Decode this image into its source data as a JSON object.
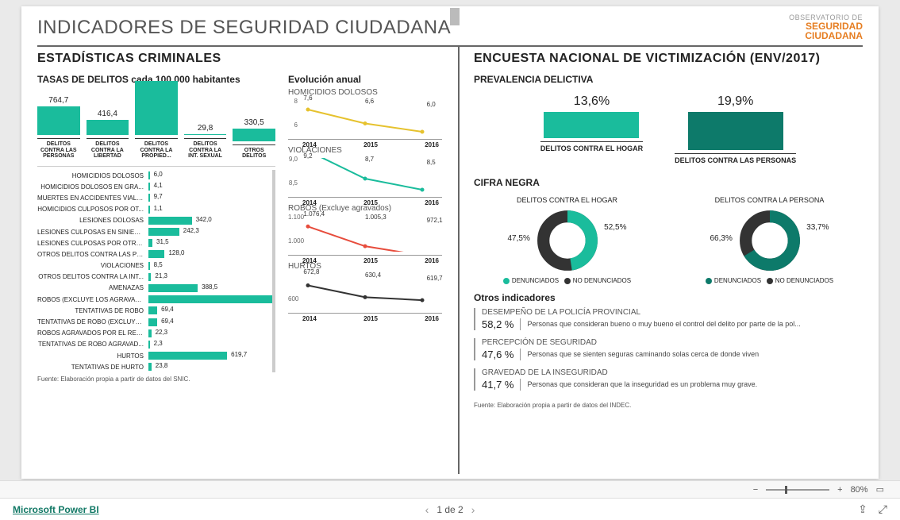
{
  "header": {
    "title": "INDICADORES DE SEGURIDAD CIUDADANA",
    "logo_top": "OBSERVATORIO DE",
    "logo_mid": "SEGURIDAD",
    "logo_bot": "CIUDADANA"
  },
  "colors": {
    "teal": "#1abc9c",
    "teal_dark": "#0d7a6a",
    "grey": "#555555",
    "yellow": "#e6c22e",
    "red": "#e74c3c",
    "dark": "#333333",
    "light_teal": "#5fd4b8"
  },
  "left": {
    "section_title": "ESTADÍSTICAS CRIMINALES",
    "tasas_title": "TASAS DE DELITOS cada 100.000 habitantes",
    "bar5": {
      "max": 1500,
      "categories": [
        "DELITOS CONTRA LAS PERSONAS",
        "DELITOS CONTRA LA LIBERTAD",
        "DELITOS CONTRA LA PROPIED...",
        "DELITOS CONTRA LA INT. SEXUAL",
        "OTROS DELITOS"
      ],
      "values": [
        764.7,
        416.4,
        1461.0,
        29.8,
        330.5
      ],
      "value_labels": [
        "764,7",
        "416,4",
        "",
        "29,8",
        "330,5"
      ]
    },
    "hbars": {
      "max": 1000,
      "items": [
        {
          "label": "HOMICIDIOS DOLOSOS",
          "value": 6.0,
          "vl": "6,0"
        },
        {
          "label": "HOMICIDIOS DOLOSOS EN GRA...",
          "value": 4.1,
          "vl": "4,1"
        },
        {
          "label": "MUERTES EN ACCIDENTES VIALES",
          "value": 9.7,
          "vl": "9,7"
        },
        {
          "label": "HOMICIDIOS CULPOSOS POR OT...",
          "value": 1.1,
          "vl": "1,1"
        },
        {
          "label": "LESIONES DOLOSAS",
          "value": 342.0,
          "vl": "342,0"
        },
        {
          "label": "LESIONES CULPOSAS EN SINIEST...",
          "value": 242.3,
          "vl": "242,3"
        },
        {
          "label": "LESIONES CULPOSAS POR OTRO...",
          "value": 31.5,
          "vl": "31,5"
        },
        {
          "label": "OTROS DELITOS CONTRA LAS PE...",
          "value": 128.0,
          "vl": "128,0"
        },
        {
          "label": "VIOLACIONES",
          "value": 8.5,
          "vl": "8,5"
        },
        {
          "label": "OTROS DELITOS CONTRA LA INT...",
          "value": 21.3,
          "vl": "21,3"
        },
        {
          "label": "AMENAZAS",
          "value": 388.5,
          "vl": "388,5"
        },
        {
          "label": "ROBOS (EXCLUYE LOS AGRAVAD...",
          "value": 972.1,
          "vl": "972,1"
        },
        {
          "label": "TENTATIVAS DE ROBO",
          "value": 69.4,
          "vl": "69,4"
        },
        {
          "label": "TENTATIVAS DE ROBO (EXCLUYE ...",
          "value": 69.4,
          "vl": "69,4"
        },
        {
          "label": "ROBOS AGRAVADOS POR EL RES...",
          "value": 22.3,
          "vl": "22,3"
        },
        {
          "label": "TENTATIVAS DE ROBO AGRAVAD...",
          "value": 2.3,
          "vl": "2,3"
        },
        {
          "label": "HURTOS",
          "value": 619.7,
          "vl": "619,7"
        },
        {
          "label": "TENTATIVAS DE HURTO",
          "value": 23.8,
          "vl": "23,8"
        }
      ]
    },
    "evolucion_title": "Evolución anual",
    "minicharts": [
      {
        "title": "HOMICIDIOS DOLOSOS",
        "years": [
          "2014",
          "2015",
          "2016"
        ],
        "vals": [
          7.6,
          6.6,
          6.0
        ],
        "val_labels": [
          "7,6",
          "6,6",
          "6,0"
        ],
        "ymin": 6,
        "ymax": 8,
        "yticks": [
          "8",
          "6"
        ],
        "color": "#e6c22e"
      },
      {
        "title": "VIOLACIONES",
        "years": [
          "2014",
          "2015",
          "2016"
        ],
        "vals": [
          9.2,
          8.7,
          8.5
        ],
        "val_labels": [
          "9,2",
          "8,7",
          "8,5"
        ],
        "ymin": 8.5,
        "ymax": 9.0,
        "yticks": [
          "9,0",
          "8,5"
        ],
        "color": "#1abc9c"
      },
      {
        "title": "ROBOS (Excluye agravados)",
        "years": [
          "2014",
          "2015",
          "2016"
        ],
        "vals": [
          1076.4,
          1005.3,
          972.1
        ],
        "val_labels": [
          "1.076,4",
          "1.005,3",
          "972,1"
        ],
        "ymin": 1000,
        "ymax": 1100,
        "yticks": [
          "1.100",
          "1.000"
        ],
        "color": "#e74c3c"
      },
      {
        "title": "HURTOS",
        "years": [
          "2014",
          "2015",
          "2016"
        ],
        "vals": [
          672.8,
          630.4,
          619.7
        ],
        "val_labels": [
          "672,8",
          "630,4",
          "619,7"
        ],
        "ymin": 600,
        "ymax": 700,
        "yticks": [
          "",
          "600"
        ],
        "color": "#333333"
      }
    ],
    "source": "Fuente: Elaboración propia a partir de datos del SNIC."
  },
  "right": {
    "section_title": "ENCUESTA NACIONAL DE VICTIMIZACIÓN (ENV/2017)",
    "prevalencia_title": "PREVALENCIA DELICTIVA",
    "prevalencia": [
      {
        "pct": "13,6%",
        "value": 13.6,
        "max": 25,
        "label": "DELITOS CONTRA EL HOGAR",
        "dark": false
      },
      {
        "pct": "19,9%",
        "value": 19.9,
        "max": 25,
        "label": "DELITOS CONTRA LAS PERSONAS",
        "dark": true
      }
    ],
    "cifra_title": "CIFRA NEGRA",
    "donuts": [
      {
        "title": "DELITOS CONTRA EL HOGAR",
        "a": 47.5,
        "b": 52.5,
        "a_label": "47,5%",
        "b_label": "52,5%",
        "color_a": "#1abc9c",
        "color_b": "#333333",
        "legend_a": "DENUNCIADOS",
        "legend_b": "NO DENUNCIADOS"
      },
      {
        "title": "DELITOS CONTRA LA PERSONA",
        "a": 66.3,
        "b": 33.7,
        "a_label": "66,3%",
        "b_label": "33,7%",
        "color_a": "#0d7a6a",
        "color_b": "#333333",
        "legend_a": "DENUNCIADOS",
        "legend_b": "NO DENUNCIADOS"
      }
    ],
    "otros_title": "Otros indicadores",
    "indicators": [
      {
        "title": "DESEMPEÑO DE LA POLICÍA PROVINCIAL",
        "pct": "58,2 %",
        "desc": "Personas que consideran bueno o muy bueno el control del delito por parte de la pol..."
      },
      {
        "title": "PERCEPCIÓN DE SEGURIDAD",
        "pct": "47,6 %",
        "desc": "Personas que se sienten seguras caminando solas cerca de donde viven"
      },
      {
        "title": "GRAVEDAD DE LA INSEGURIDAD",
        "pct": "41,7 %",
        "desc": "Personas que consideran que la inseguridad es un problema muy grave."
      }
    ],
    "source": "Fuente: Elaboración propia a partir de datos del INDEC."
  },
  "statusbar": {
    "zoom": "80%"
  },
  "footer": {
    "brand": "Microsoft Power BI",
    "page": "1 de 2"
  }
}
